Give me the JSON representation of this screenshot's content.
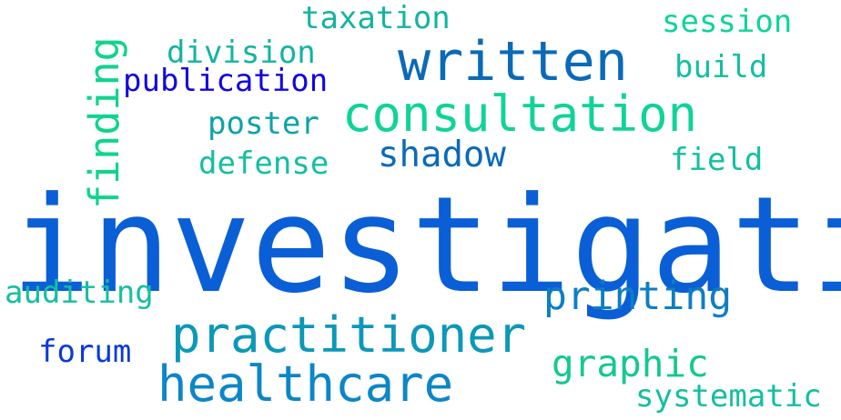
{
  "words": [
    {
      "id": "investigation",
      "text": "investigation",
      "color": "#0a5fd6",
      "weight": 1.0
    },
    {
      "id": "written",
      "text": "written",
      "color": "#0b6ab8",
      "weight": 0.45
    },
    {
      "id": "consultation",
      "text": "consultation",
      "color": "#10d39a",
      "weight": 0.42
    },
    {
      "id": "practitioner",
      "text": "practitioner",
      "color": "#0c98b8",
      "weight": 0.41
    },
    {
      "id": "healthcare",
      "text": "healthcare",
      "color": "#0d86c7",
      "weight": 0.41
    },
    {
      "id": "finding",
      "text": "finding",
      "color": "#11d48c",
      "weight": 0.36
    },
    {
      "id": "printing",
      "text": "printing",
      "color": "#0d7ec4",
      "weight": 0.33
    },
    {
      "id": "shadow",
      "text": "shadow",
      "color": "#0b6ab8",
      "weight": 0.3
    },
    {
      "id": "graphic",
      "text": "graphic",
      "color": "#13c98f",
      "weight": 0.31
    },
    {
      "id": "taxation",
      "text": "taxation",
      "color": "#14b3a2",
      "weight": 0.27
    },
    {
      "id": "session",
      "text": "session",
      "color": "#10d39a",
      "weight": 0.27
    },
    {
      "id": "division",
      "text": "division",
      "color": "#14b3a2",
      "weight": 0.27
    },
    {
      "id": "publication",
      "text": "publication",
      "color": "#1206e0",
      "weight": 0.27
    },
    {
      "id": "build",
      "text": "build",
      "color": "#14bfa0",
      "weight": 0.26
    },
    {
      "id": "poster",
      "text": "poster",
      "color": "#0ea3a8",
      "weight": 0.26
    },
    {
      "id": "defense",
      "text": "defense",
      "color": "#14bfa0",
      "weight": 0.26
    },
    {
      "id": "field",
      "text": "field",
      "color": "#14bfa0",
      "weight": 0.26
    },
    {
      "id": "auditing",
      "text": "auditing",
      "color": "#14bfa0",
      "weight": 0.26
    },
    {
      "id": "forum",
      "text": "forum",
      "color": "#0a3ad8",
      "weight": 0.26
    },
    {
      "id": "systematic",
      "text": "systematic",
      "color": "#14bfa0",
      "weight": 0.26
    }
  ]
}
